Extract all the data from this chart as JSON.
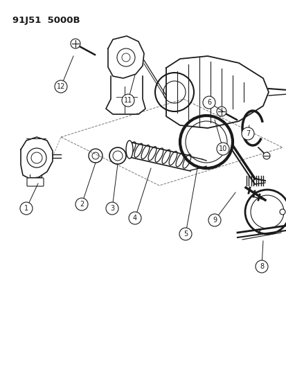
{
  "title": "91J51  5000B",
  "bg_color": "#ffffff",
  "line_color": "#1a1a1a",
  "fig_width": 4.14,
  "fig_height": 5.33,
  "dpi": 100
}
